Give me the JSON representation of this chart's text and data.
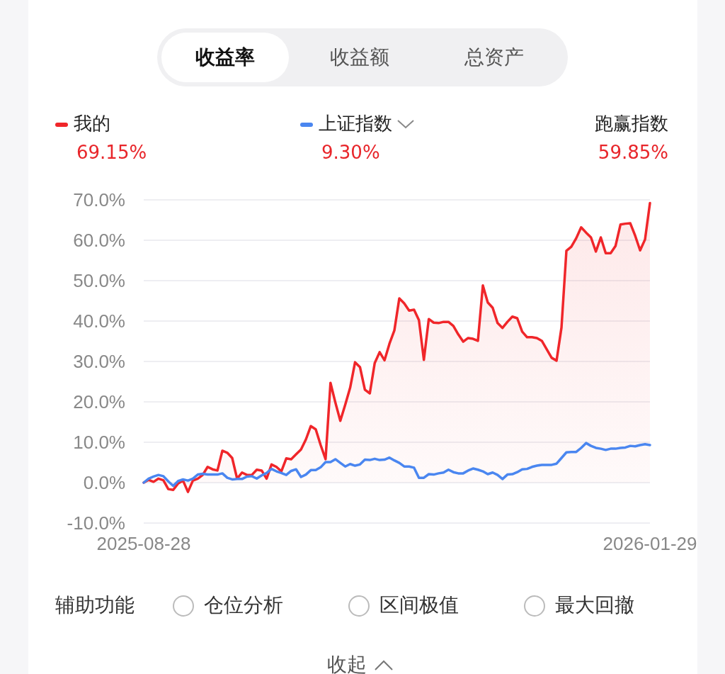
{
  "chart_data": {
    "type": "line",
    "legend": "top",
    "grid": "y",
    "marker": "none",
    "line_style": "solid",
    "categories": [
      "2025-08-28",
      null,
      null,
      null,
      null,
      null,
      null,
      null,
      null,
      null,
      null,
      null,
      null,
      null,
      null,
      null,
      null,
      null,
      null,
      null,
      null,
      null,
      null,
      null,
      null,
      null,
      null,
      null,
      null,
      null,
      null,
      null,
      null,
      null,
      null,
      null,
      null,
      null,
      null,
      null,
      null,
      null,
      null,
      null,
      null,
      null,
      null,
      null,
      null,
      null,
      null,
      null,
      null,
      null,
      null,
      null,
      null,
      null,
      null,
      null,
      null,
      null,
      null,
      null,
      null,
      null,
      null,
      null,
      null,
      null,
      null,
      null,
      null,
      null,
      null,
      null,
      null,
      null,
      null,
      null,
      null,
      null,
      null,
      null,
      null,
      null,
      null,
      null,
      null,
      null,
      null,
      null,
      null,
      null,
      null,
      null,
      null,
      null,
      null,
      null,
      null,
      null,
      null,
      "2026-01-29"
    ],
    "ylim": [
      -10,
      70
    ],
    "yticks": [
      {
        "value": -10,
        "label": "-10.0%"
      },
      {
        "value": 0,
        "label": "0.0%"
      },
      {
        "value": 10,
        "label": "10.0%"
      },
      {
        "value": 20,
        "label": "20.0%"
      },
      {
        "value": 30,
        "label": "30.0%"
      },
      {
        "value": 40,
        "label": "40.0%"
      },
      {
        "value": 50,
        "label": "50.0%"
      },
      {
        "value": 60,
        "label": "60.0%"
      },
      {
        "value": 70,
        "label": "70.0%"
      }
    ],
    "series": [
      {
        "name": "我的",
        "type": "area",
        "color": "#f0262a",
        "values": [
          0.0,
          0.7,
          0.2,
          1.0,
          0.6,
          -1.6,
          -1.8,
          -0.2,
          0.5,
          -2.3,
          0.5,
          1.0,
          1.9,
          3.9,
          3.3,
          3.0,
          7.9,
          7.4,
          6.1,
          1.0,
          2.5,
          1.9,
          1.9,
          3.2,
          3.0,
          1.0,
          4.5,
          3.9,
          2.8,
          6.0,
          5.8,
          7.0,
          8.2,
          10.7,
          14.0,
          13.2,
          9.3,
          5.8,
          24.7,
          19.8,
          15.3,
          19.3,
          23.5,
          29.8,
          28.6,
          23.0,
          22.1,
          29.6,
          32.3,
          30.3,
          34.4,
          37.7,
          45.6,
          44.4,
          42.6,
          42.8,
          40.2,
          30.4,
          40.5,
          39.6,
          39.5,
          39.8,
          39.8,
          38.8,
          36.7,
          34.9,
          35.8,
          35.6,
          35.1,
          48.8,
          44.6,
          43.3,
          39.5,
          38.3,
          39.8,
          41.1,
          40.7,
          37.4,
          36.0,
          36.0,
          35.8,
          35.1,
          33.0,
          30.9,
          30.2,
          38.4,
          57.4,
          58.4,
          60.5,
          63.2,
          61.9,
          60.7,
          57.2,
          60.7,
          56.8,
          56.8,
          58.6,
          63.9,
          64.1,
          64.2,
          61.1,
          57.5,
          60.2,
          69.2
        ]
      },
      {
        "name": "上证指数",
        "type": "line",
        "color": "#4a86f0",
        "values": [
          0.0,
          1.0,
          1.5,
          1.9,
          1.6,
          0.3,
          -0.8,
          0.4,
          0.8,
          0.5,
          1.0,
          2.0,
          2.2,
          2.0,
          2.0,
          2.0,
          2.3,
          1.2,
          0.8,
          0.9,
          0.9,
          1.5,
          1.6,
          1.0,
          1.8,
          2.4,
          3.4,
          2.8,
          2.4,
          1.9,
          2.9,
          3.3,
          1.4,
          2.0,
          3.1,
          3.1,
          3.8,
          5.1,
          5.1,
          5.8,
          4.9,
          4.0,
          4.6,
          4.2,
          4.5,
          5.7,
          5.6,
          5.9,
          5.6,
          5.7,
          6.2,
          5.5,
          4.9,
          4.0,
          4.0,
          3.7,
          1.2,
          1.2,
          2.1,
          2.0,
          2.3,
          2.5,
          3.2,
          2.6,
          2.3,
          2.3,
          3.0,
          3.5,
          3.2,
          2.8,
          2.1,
          2.5,
          1.9,
          0.9,
          2.0,
          2.1,
          2.6,
          3.3,
          3.4,
          3.9,
          4.2,
          4.4,
          4.4,
          4.4,
          4.7,
          6.1,
          7.5,
          7.6,
          7.6,
          8.6,
          9.8,
          9.1,
          8.6,
          8.4,
          8.1,
          8.4,
          8.4,
          8.6,
          8.7,
          9.1,
          9.0,
          9.3,
          9.5,
          9.3
        ]
      }
    ],
    "annotations": [
      "收益率",
      "收益额",
      "总资产",
      "跑赢指数",
      "59.85%",
      "69.15%",
      "9.30%",
      "辅助功能",
      "仓位分析",
      "区间极值",
      "最大回撤",
      "收起"
    ]
  }
}
